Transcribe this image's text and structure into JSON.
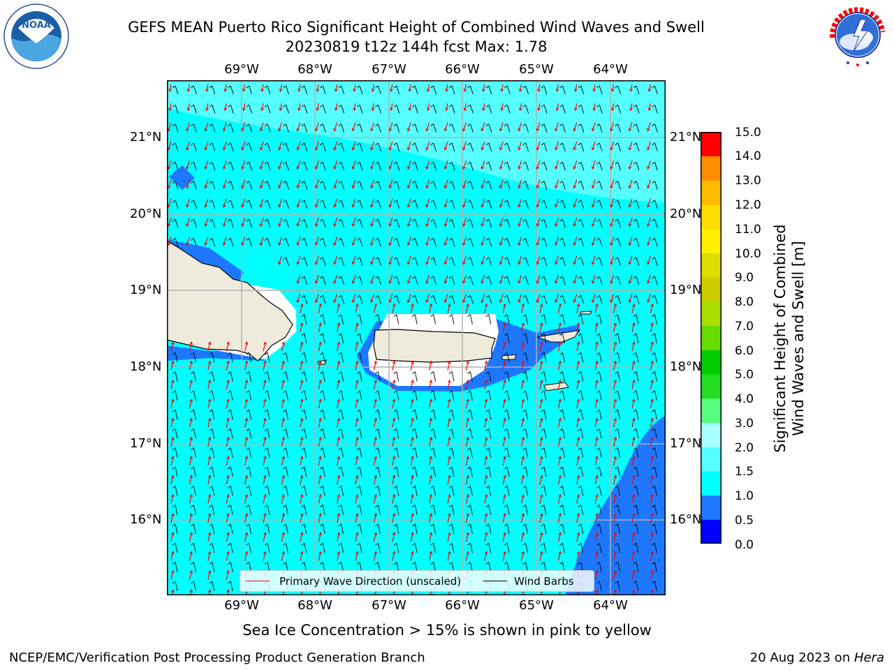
{
  "header": {
    "title_line1": "GEFS MEAN Puerto Rico Significant Height of Combined Wind Waves and Swell",
    "title_line2": "20230819 t12z 144h fcst   Max: 1.78"
  },
  "logos": {
    "noaa_text": "NOAA",
    "noaa_ring_text": "NATIONAL OCEANIC AND ATMOSPHERIC ADMINISTRATION · U.S. DEPARTMENT OF COMMERCE",
    "nws_ring_text": "NATIONAL WEATHER SERVICE"
  },
  "map": {
    "lon_labels": [
      "69°W",
      "68°W",
      "67°W",
      "66°W",
      "65°W",
      "64°W"
    ],
    "lat_labels": [
      "21°N",
      "20°N",
      "19°N",
      "18°N",
      "17°N",
      "16°N"
    ],
    "legend": {
      "wave_direction": "Primary Wave Direction (unscaled)",
      "wind_barbs": "Wind Barbs"
    },
    "colors": {
      "ocean": "#00ffff",
      "light_band": "#55ffff",
      "low_band": "#1e78ff",
      "land": "#efebdc",
      "wave_arrow": "#ff0000",
      "barb": "#000000"
    }
  },
  "colorbar": {
    "label_line1": "Significant Height of Combined",
    "label_line2": "Wind Waves and Swell [m]",
    "ticks": [
      "15.0",
      "14.0",
      "13.0",
      "12.0",
      "11.0",
      "10.0",
      "9.0",
      "8.0",
      "7.0",
      "6.0",
      "5.0",
      "4.0",
      "3.0",
      "2.0",
      "1.5",
      "1.0",
      "0.5",
      "0.0"
    ],
    "colors_bottom_to_top": [
      "#0000ff",
      "#1e78ff",
      "#00ffff",
      "#55ffff",
      "#aaffff",
      "#55ff80",
      "#22dd22",
      "#00cc00",
      "#66dd00",
      "#aadd00",
      "#cccc00",
      "#dddd00",
      "#ffee00",
      "#ffdd00",
      "#ffbb00",
      "#ff8c00",
      "#ff6400",
      "#ff3200",
      "#ff0000"
    ]
  },
  "footer": {
    "note": "Sea Ice Concentration > 15% is shown in pink to yellow",
    "branch": "NCEP/EMC/Verification Post Processing Product Generation Branch",
    "date": "20 Aug 2023 on ",
    "machine": "Hera"
  }
}
